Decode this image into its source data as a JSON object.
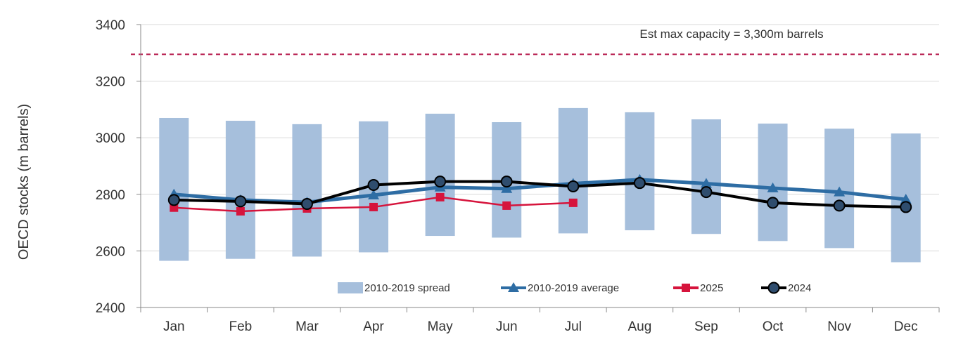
{
  "chart_data": {
    "type": "line",
    "ylabel": "OECD stocks (m barrels)",
    "xlabel": "",
    "categories": [
      "Jan",
      "Feb",
      "Mar",
      "Apr",
      "May",
      "Jun",
      "Jul",
      "Aug",
      "Sep",
      "Oct",
      "Nov",
      "Dec"
    ],
    "yticks": [
      "2400",
      "2600",
      "2800",
      "3000",
      "3200",
      "3400"
    ],
    "ylim": [
      2400,
      3400
    ],
    "spread": {
      "name": "2010-2019 spread",
      "color": "#a6bfdc",
      "low": [
        2565,
        2572,
        2580,
        2595,
        2653,
        2647,
        2662,
        2673,
        2660,
        2635,
        2610,
        2560
      ],
      "high": [
        3070,
        3060,
        3048,
        3058,
        3085,
        3055,
        3105,
        3090,
        3065,
        3050,
        3032,
        3015
      ]
    },
    "series": [
      {
        "name": "2010-2019 average",
        "color": "#2e6da4",
        "marker": "triangle",
        "values": [
          2800,
          2780,
          2772,
          2797,
          2825,
          2820,
          2838,
          2852,
          2838,
          2822,
          2808,
          2782
        ]
      },
      {
        "name": "2025",
        "color": "#d6143c",
        "marker": "square",
        "values": [
          2753,
          2740,
          2750,
          2755,
          2790,
          2760,
          2770,
          null,
          null,
          null,
          null,
          null
        ]
      },
      {
        "name": "2024",
        "color": "#000000",
        "marker": "circle",
        "values": [
          2780,
          2775,
          2766,
          2833,
          2845,
          2845,
          2828,
          2840,
          2808,
          2770,
          2760,
          2755
        ]
      }
    ],
    "reference_line": {
      "value": 3295,
      "color": "#b5174a",
      "label": "Est max capacity = 3,300m barrels"
    },
    "legend_position": "bottom-center",
    "grid": true
  }
}
